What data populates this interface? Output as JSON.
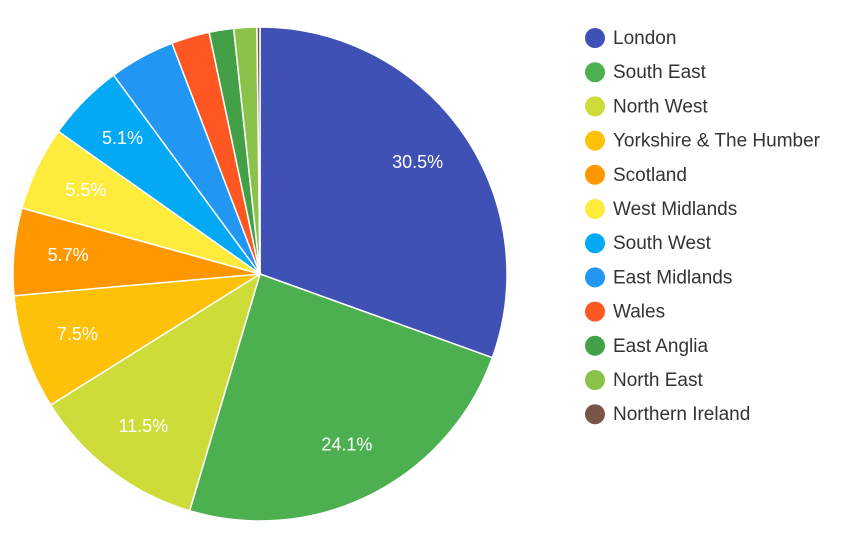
{
  "chart_data": {
    "type": "pie",
    "categories": [
      "London",
      "South East",
      "North West",
      "Yorkshire & The Humber",
      "Scotland",
      "West Midlands",
      "South West",
      "East Midlands",
      "Wales",
      "East Anglia",
      "North East",
      "Northern Ireland"
    ],
    "values": [
      30.5,
      24.1,
      11.5,
      7.5,
      5.7,
      5.5,
      5.1,
      4.3,
      2.5,
      1.6,
      1.5,
      0.2
    ],
    "value_labels": [
      "30.5%",
      "24.1%",
      "11.5%",
      "7.5%",
      "5.7%",
      "5.5%",
      "5.1%",
      null,
      null,
      null,
      null,
      null
    ],
    "colors": [
      "#3f51b5",
      "#4caf50",
      "#cddc39",
      "#ffc107",
      "#ff9800",
      "#ffeb3b",
      "#03a9f4",
      "#2196f3",
      "#ff5722",
      "#43a047",
      "#8bc34a",
      "#795548"
    ],
    "legend": "right"
  }
}
